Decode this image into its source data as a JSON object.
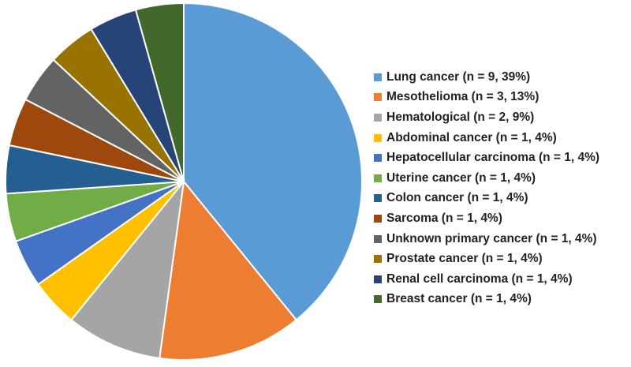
{
  "chart_data": {
    "type": "pie",
    "start_angle": "top",
    "direction": "clockwise",
    "legend_placement": "right",
    "slices": [
      {
        "label": "Lung cancer (n = 9, 39%)",
        "value": 9,
        "color": "#5b9bd5"
      },
      {
        "label": "Mesothelioma (n = 3, 13%)",
        "value": 3,
        "color": "#ed7d31"
      },
      {
        "label": "Hematological (n = 2, 9%)",
        "value": 2,
        "color": "#a5a5a5"
      },
      {
        "label": "Abdominal cancer (n = 1, 4%)",
        "value": 1,
        "color": "#ffc000"
      },
      {
        "label": "Hepatocellular carcinoma (n = 1, 4%)",
        "value": 1,
        "color": "#4472c4"
      },
      {
        "label": "Uterine cancer (n = 1, 4%)",
        "value": 1,
        "color": "#70ad47"
      },
      {
        "label": "Colon cancer (n = 1, 4%)",
        "value": 1,
        "color": "#255e91"
      },
      {
        "label": "Sarcoma (n = 1, 4%)",
        "value": 1,
        "color": "#9e480e"
      },
      {
        "label": "Unknown primary cancer (n = 1, 4%)",
        "value": 1,
        "color": "#636363"
      },
      {
        "label": "Prostate cancer (n = 1, 4%)",
        "value": 1,
        "color": "#997300"
      },
      {
        "label": "Renal cell carcinoma (n = 1, 4%)",
        "value": 1,
        "color": "#264478"
      },
      {
        "label": "Breast cancer (n = 1, 4%)",
        "value": 1,
        "color": "#43682b"
      }
    ]
  }
}
